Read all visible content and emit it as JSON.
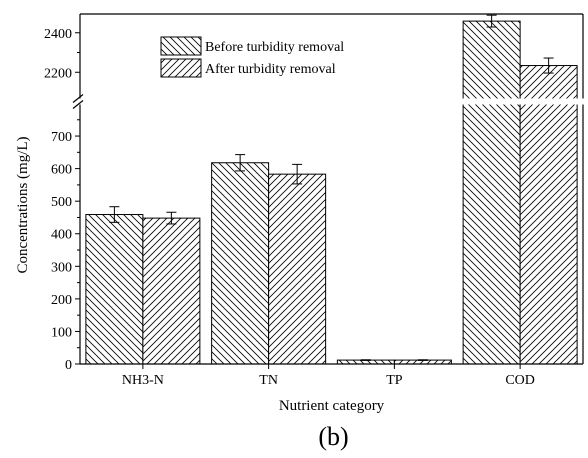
{
  "chart_data": {
    "type": "bar",
    "xlabel": "Nutrient category",
    "ylabel": "Concentrations (mg/L)",
    "caption": "(b)",
    "categories": [
      "NH3-N",
      "TN",
      "TP",
      "COD"
    ],
    "axis_break": true,
    "lower_ylim": [
      0,
      780
    ],
    "lower_ticks": [
      0,
      100,
      200,
      300,
      400,
      500,
      600,
      700
    ],
    "upper_ylim": [
      2095,
      2495
    ],
    "upper_ticks": [
      2200,
      2400
    ],
    "legend_position": "top-center",
    "series": [
      {
        "name": "Before turbidity removal",
        "hatch": "backslash",
        "values": [
          459,
          618,
          12,
          2459
        ],
        "errors": [
          24,
          25,
          1,
          30
        ]
      },
      {
        "name": "After turbidity removal",
        "hatch": "forwardslash",
        "values": [
          448,
          583,
          12,
          2234
        ],
        "errors": [
          18,
          30,
          1,
          38
        ]
      }
    ]
  }
}
